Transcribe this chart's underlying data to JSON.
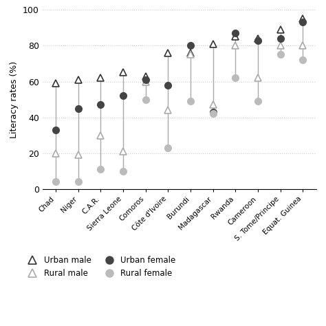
{
  "countries": [
    "Chad",
    "Niger",
    "C.A.R.",
    "Sierra Leone",
    "Comoros",
    "Côte d'Ivoire",
    "Burundi",
    "Madagascar",
    "Rwanda",
    "Cameroon",
    "S. Tome/Principe",
    "Equat. Guinea"
  ],
  "urban_male": [
    59,
    61,
    62,
    65,
    63,
    76,
    76,
    81,
    85,
    84,
    89,
    95
  ],
  "rural_male": [
    20,
    19,
    30,
    21,
    60,
    44,
    75,
    47,
    80,
    62,
    80,
    80
  ],
  "urban_female": [
    33,
    45,
    47,
    52,
    61,
    58,
    80,
    43,
    87,
    83,
    84,
    93
  ],
  "rural_female": [
    4,
    4,
    11,
    10,
    50,
    23,
    49,
    42,
    62,
    49,
    75,
    72
  ],
  "ylabel": "Literacy rates (%)",
  "ylim": [
    0,
    100
  ],
  "yticks": [
    0,
    20,
    40,
    60,
    80,
    100
  ],
  "urban_male_color": "#333333",
  "rural_male_color": "#aaaaaa",
  "urban_female_color": "#444444",
  "rural_female_color": "#bbbbbb",
  "line_color": "#aaaaaa",
  "bg_color": "#ffffff",
  "grid_color": "#cccccc"
}
